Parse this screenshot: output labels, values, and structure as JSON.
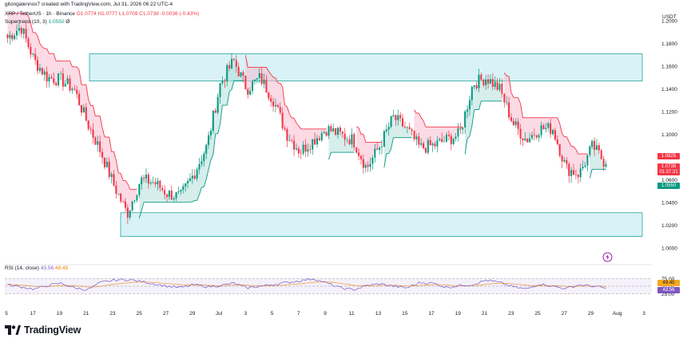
{
  "header": {
    "credit": "gitongalennox7 created with TradingView.com, Jul 31, 2026 06:22 UTC-4",
    "symbol": "XRP / TetherUS · 1h · Binance",
    "ohlc": "O1.0774  H1.0777  L1.0709  C1.0738  -0.0036 (-0.43%)",
    "supertrend_label": "Supertrend (10, 3)",
    "supertrend_value": "1.0550",
    "supertrend_symbol": "Ø"
  },
  "price_axis": {
    "currency": "USDT",
    "ticks": [
      "1.2000",
      "1.1800",
      "1.1600",
      "1.1400",
      "1.1200",
      "1.1000",
      "1.0800",
      "1.0600",
      "1.0400",
      "1.0200",
      "1.0000"
    ],
    "tags": [
      {
        "text": "1.0825",
        "color": "#f23645"
      },
      {
        "text": "1.0738",
        "color": "#f23645"
      },
      {
        "text": "01:37:31",
        "color": "#f23645"
      },
      {
        "text": "1.0550",
        "color": "#089981"
      }
    ]
  },
  "time_axis": {
    "labels": [
      "5",
      "17",
      "19",
      "21",
      "23",
      "25",
      "27",
      "29",
      "Jul",
      "3",
      "5",
      "7",
      "9",
      "11",
      "13",
      "15",
      "17",
      "19",
      "21",
      "23",
      "25",
      "27",
      "29",
      "Aug",
      "3"
    ]
  },
  "rsi": {
    "label": "RSI (14, close)",
    "value": "43.56",
    "ma_value": "49.45",
    "ticks": [
      "75.00",
      "50.00",
      "25.00"
    ],
    "tags": [
      {
        "text": "49.45",
        "color": "#f5a623"
      },
      {
        "text": "43.56",
        "color": "#7e57c2"
      }
    ]
  },
  "logo": {
    "text": "TradingView"
  },
  "colors": {
    "up": "#089981",
    "down": "#f23645",
    "zone": "#cbeef4",
    "zone_border": "#26a69a",
    "st_up": "#089981",
    "st_down": "#f23645",
    "rsi": "#7e57c2",
    "rsi_ma": "#f57c00"
  },
  "chart_data": {
    "type": "candlestick",
    "symbol": "XRP / TetherUS",
    "interval": "1h",
    "y_range": [
      0.995,
      1.21
    ],
    "zones": [
      {
        "from": 1.147,
        "to": 1.171
      },
      {
        "from": 1.01,
        "to": 1.031
      }
    ],
    "close_path": [
      {
        "t": "16",
        "price": 1.185
      },
      {
        "t": "17",
        "price": 1.195
      },
      {
        "t": "18",
        "price": 1.165
      },
      {
        "t": "19",
        "price": 1.15
      },
      {
        "t": "20",
        "price": 1.148
      },
      {
        "t": "21",
        "price": 1.14
      },
      {
        "t": "22",
        "price": 1.11
      },
      {
        "t": "23",
        "price": 1.085
      },
      {
        "t": "24",
        "price": 1.055
      },
      {
        "t": "25",
        "price": 1.03
      },
      {
        "t": "26",
        "price": 1.06
      },
      {
        "t": "27",
        "price": 1.058
      },
      {
        "t": "28",
        "price": 1.048
      },
      {
        "t": "29",
        "price": 1.045
      },
      {
        "t": "30",
        "price": 1.065
      },
      {
        "t": "Jul",
        "price": 1.09
      },
      {
        "t": "2",
        "price": 1.145
      },
      {
        "t": "3",
        "price": 1.165
      },
      {
        "t": "4",
        "price": 1.14
      },
      {
        "t": "5",
        "price": 1.15
      },
      {
        "t": "6",
        "price": 1.13
      },
      {
        "t": "7",
        "price": 1.1
      },
      {
        "t": "8",
        "price": 1.085
      },
      {
        "t": "9",
        "price": 1.095
      },
      {
        "t": "10",
        "price": 1.105
      },
      {
        "t": "11",
        "price": 1.1
      },
      {
        "t": "12",
        "price": 1.095
      },
      {
        "t": "13",
        "price": 1.07
      },
      {
        "t": "14",
        "price": 1.09
      },
      {
        "t": "15",
        "price": 1.115
      },
      {
        "t": "16",
        "price": 1.105
      },
      {
        "t": "17",
        "price": 1.088
      },
      {
        "t": "18",
        "price": 1.09
      },
      {
        "t": "19",
        "price": 1.095
      },
      {
        "t": "20",
        "price": 1.1
      },
      {
        "t": "21",
        "price": 1.145
      },
      {
        "t": "22",
        "price": 1.15
      },
      {
        "t": "23",
        "price": 1.14
      },
      {
        "t": "24",
        "price": 1.11
      },
      {
        "t": "25",
        "price": 1.095
      },
      {
        "t": "26",
        "price": 1.105
      },
      {
        "t": "27",
        "price": 1.105
      },
      {
        "t": "28",
        "price": 1.07
      },
      {
        "t": "29",
        "price": 1.065
      },
      {
        "t": "30",
        "price": 1.09
      },
      {
        "t": "31",
        "price": 1.0738
      }
    ],
    "rsi_range": [
      0,
      100
    ],
    "rsi_levels": [
      75,
      50,
      25
    ],
    "rsi_path": [
      55,
      48,
      40,
      52,
      60,
      45,
      38,
      62,
      70,
      72,
      66,
      58,
      50,
      45,
      55,
      48,
      52,
      60,
      44,
      50,
      56,
      62,
      68,
      75,
      60,
      45,
      38,
      52,
      58,
      50,
      44,
      62,
      60,
      46,
      52,
      56,
      70,
      62,
      48,
      40,
      58,
      50,
      42,
      55,
      50,
      43.56
    ]
  }
}
